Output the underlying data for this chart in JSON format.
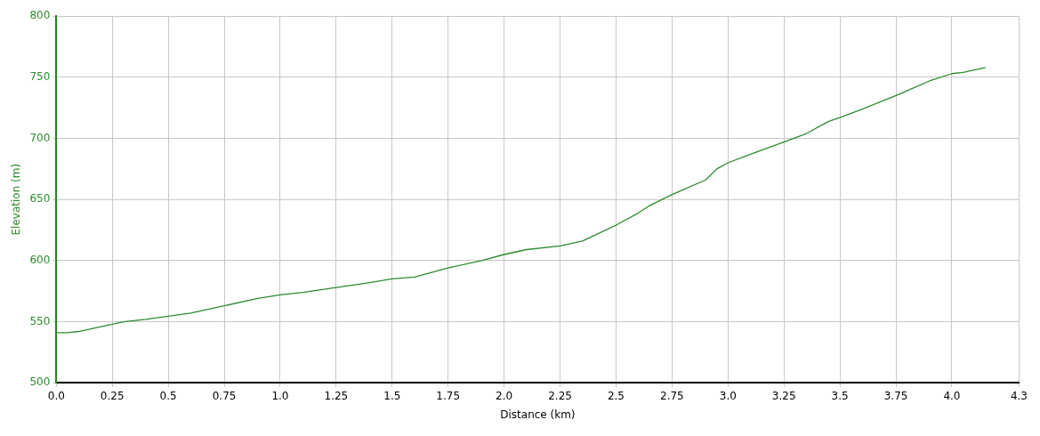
{
  "chart_data": {
    "type": "line",
    "xlabel": "Distance (km)",
    "ylabel": "Elevation (m)",
    "x": [
      0,
      0.05,
      0.1,
      0.2,
      0.25,
      0.3,
      0.4,
      0.5,
      0.6,
      0.75,
      0.9,
      1.0,
      1.1,
      1.25,
      1.4,
      1.5,
      1.6,
      1.75,
      1.9,
      2.0,
      2.1,
      2.25,
      2.35,
      2.5,
      2.6,
      2.65,
      2.75,
      2.9,
      2.95,
      3.0,
      3.1,
      3.25,
      3.35,
      3.45,
      3.5,
      3.6,
      3.75,
      3.9,
      4.0,
      4.05,
      4.15
    ],
    "series": [
      {
        "color": "#2e8b2e",
        "values": [
          541,
          541,
          542,
          546,
          548,
          550,
          552,
          554.5,
          557,
          563,
          569,
          572,
          574,
          578,
          582,
          585,
          586.5,
          594,
          600,
          605,
          609,
          612,
          616,
          629,
          639,
          645,
          654,
          666,
          675,
          680,
          687,
          697,
          704,
          714,
          717,
          724,
          735,
          747,
          753,
          754,
          758
        ]
      }
    ],
    "xlim": [
      0,
      4.3
    ],
    "xticks": [
      {
        "value": 0,
        "label": "0.0"
      },
      0.25,
      0.5,
      0.75,
      {
        "value": 1,
        "label": "1.0"
      },
      1.25,
      1.5,
      1.75,
      {
        "value": 2,
        "label": "2.0"
      },
      2.25,
      2.5,
      2.75,
      {
        "value": 3,
        "label": "3.0"
      },
      3.25,
      3.5,
      3.75,
      {
        "value": 4,
        "label": "4.0"
      },
      4.3
    ],
    "ylim": [
      500,
      800
    ],
    "yticks": [
      500,
      550,
      600,
      650,
      700,
      750,
      800
    ],
    "grid": true,
    "legend": false,
    "marker": "none",
    "line_style": "solid"
  }
}
